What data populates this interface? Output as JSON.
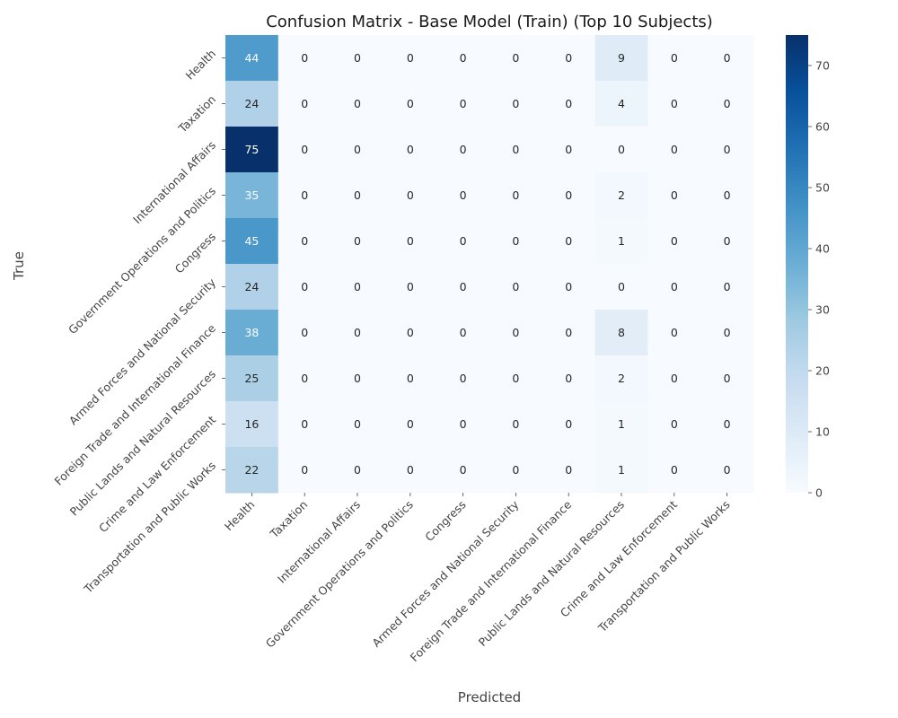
{
  "chart_data": {
    "type": "heatmap",
    "title": "Confusion Matrix - Base Model (Train) (Top 10 Subjects)",
    "xlabel": "Predicted",
    "ylabel": "True",
    "x_categories": [
      "Health",
      "Taxation",
      "International Affairs",
      "Government Operations and Politics",
      "Congress",
      "Armed Forces and National Security",
      "Foreign Trade and International Finance",
      "Public Lands and Natural Resources",
      "Crime and Law Enforcement",
      "Transportation and Public Works"
    ],
    "y_categories": [
      "Health",
      "Taxation",
      "International Affairs",
      "Government Operations and Politics",
      "Congress",
      "Armed Forces and National Security",
      "Foreign Trade and International Finance",
      "Public Lands and Natural Resources",
      "Crime and Law Enforcement",
      "Transportation and Public Works"
    ],
    "values": [
      [
        44,
        0,
        0,
        0,
        0,
        0,
        0,
        9,
        0,
        0
      ],
      [
        24,
        0,
        0,
        0,
        0,
        0,
        0,
        4,
        0,
        0
      ],
      [
        75,
        0,
        0,
        0,
        0,
        0,
        0,
        0,
        0,
        0
      ],
      [
        35,
        0,
        0,
        0,
        0,
        0,
        0,
        2,
        0,
        0
      ],
      [
        45,
        0,
        0,
        0,
        0,
        0,
        0,
        1,
        0,
        0
      ],
      [
        24,
        0,
        0,
        0,
        0,
        0,
        0,
        0,
        0,
        0
      ],
      [
        38,
        0,
        0,
        0,
        0,
        0,
        0,
        8,
        0,
        0
      ],
      [
        25,
        0,
        0,
        0,
        0,
        0,
        0,
        2,
        0,
        0
      ],
      [
        16,
        0,
        0,
        0,
        0,
        0,
        0,
        1,
        0,
        0
      ],
      [
        22,
        0,
        0,
        0,
        0,
        0,
        0,
        1,
        0,
        0
      ]
    ],
    "colorbar": {
      "range": [
        0,
        75
      ],
      "ticks": [
        0,
        10,
        20,
        30,
        40,
        50,
        60,
        70
      ]
    },
    "colormap": "Blues",
    "grid": false
  }
}
